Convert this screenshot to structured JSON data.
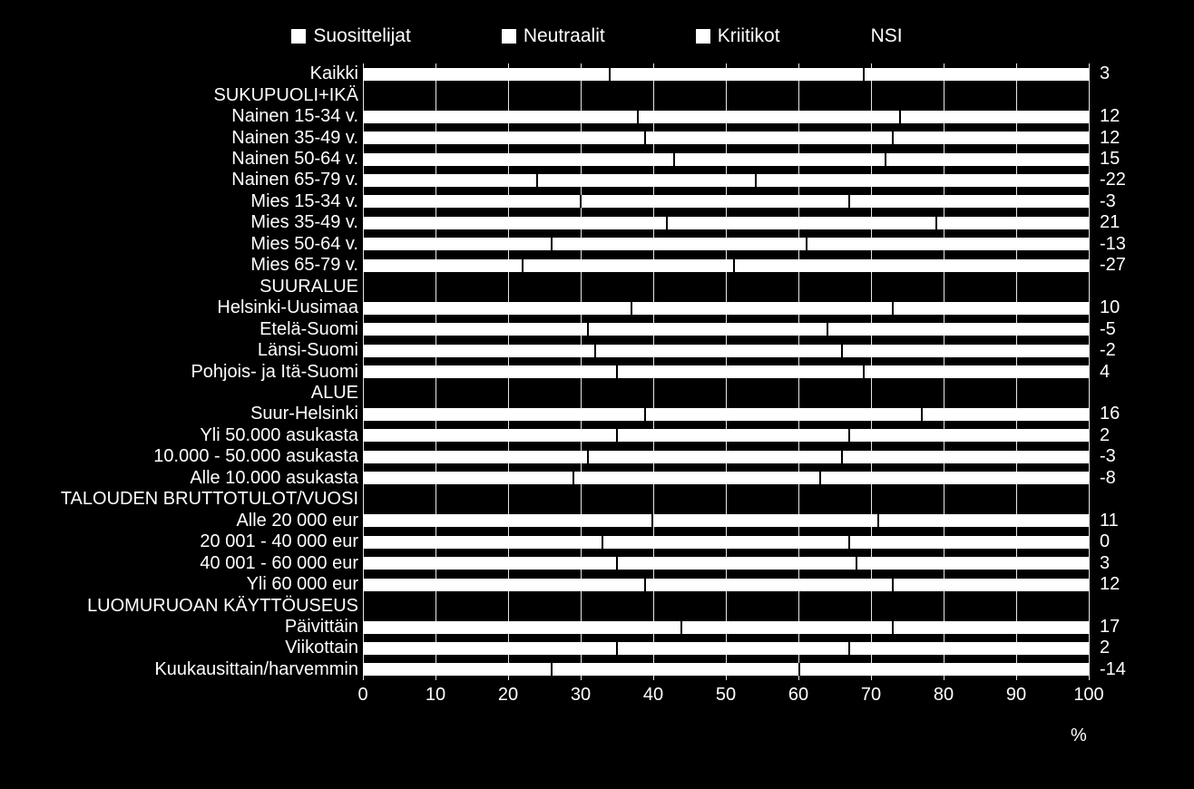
{
  "chart": {
    "type": "stacked-bar-horizontal",
    "background_color": "#000000",
    "text_color": "#ffffff",
    "label_fontsize": 20,
    "legend_fontsize": 21,
    "x_axis": {
      "min": 0,
      "max": 100,
      "tick_step": 10,
      "ticks": [
        0,
        10,
        20,
        30,
        40,
        50,
        60,
        70,
        80,
        90,
        100
      ],
      "unit_label": "%",
      "grid_color": "#ffffff"
    },
    "legend": [
      {
        "label": "Suosittelijat",
        "color": "#ffffff",
        "swatch_border": "#ffffff"
      },
      {
        "label": "Neutraalit",
        "color": "#ffffff",
        "swatch_border": "#ffffff"
      },
      {
        "label": "Kriitikot",
        "color": "#ffffff",
        "swatch_border": "#ffffff"
      }
    ],
    "nsi_header": "NSI",
    "series_colors": [
      "#ffffff",
      "#ffffff",
      "#ffffff"
    ],
    "segment_gap_color": "#000000",
    "rows": [
      {
        "label": "Kaikki",
        "values": [
          34,
          35,
          31
        ],
        "nsi": "3"
      },
      {
        "label": "SUKUPUOLI+IKÄ",
        "header": true
      },
      {
        "label": "Nainen 15-34 v.",
        "values": [
          38,
          36,
          26
        ],
        "nsi": "12"
      },
      {
        "label": "Nainen 35-49 v.",
        "values": [
          39,
          34,
          27
        ],
        "nsi": "12"
      },
      {
        "label": "Nainen 50-64 v.",
        "values": [
          43,
          29,
          28
        ],
        "nsi": "15"
      },
      {
        "label": "Nainen 65-79 v.",
        "values": [
          24,
          30,
          46
        ],
        "nsi": "-22"
      },
      {
        "label": "Mies 15-34 v.",
        "values": [
          30,
          37,
          33
        ],
        "nsi": "-3"
      },
      {
        "label": "Mies 35-49 v.",
        "values": [
          42,
          37,
          21
        ],
        "nsi": "21"
      },
      {
        "label": "Mies 50-64 v.",
        "values": [
          26,
          35,
          39
        ],
        "nsi": "-13"
      },
      {
        "label": "Mies 65-79 v.",
        "values": [
          22,
          29,
          49
        ],
        "nsi": "-27"
      },
      {
        "label": "SUURALUE",
        "header": true
      },
      {
        "label": "Helsinki-Uusimaa",
        "values": [
          37,
          36,
          27
        ],
        "nsi": "10"
      },
      {
        "label": "Etelä-Suomi",
        "values": [
          31,
          33,
          36
        ],
        "nsi": "-5"
      },
      {
        "label": "Länsi-Suomi",
        "values": [
          32,
          34,
          34
        ],
        "nsi": "-2"
      },
      {
        "label": "Pohjois- ja Itä-Suomi",
        "values": [
          35,
          34,
          31
        ],
        "nsi": "4"
      },
      {
        "label": "ALUE",
        "header": true
      },
      {
        "label": "Suur-Helsinki",
        "values": [
          39,
          38,
          23
        ],
        "nsi": "16"
      },
      {
        "label": "Yli 50.000 asukasta",
        "values": [
          35,
          32,
          33
        ],
        "nsi": "2"
      },
      {
        "label": "10.000 - 50.000 asukasta",
        "values": [
          31,
          35,
          34
        ],
        "nsi": "-3"
      },
      {
        "label": "Alle 10.000 asukasta",
        "values": [
          29,
          34,
          37
        ],
        "nsi": "-8"
      },
      {
        "label": "TALOUDEN BRUTTOTULOT/VUOSI",
        "header": true
      },
      {
        "label": "Alle 20 000 eur",
        "values": [
          40,
          31,
          29
        ],
        "nsi": "11"
      },
      {
        "label": "20 001 - 40 000 eur",
        "values": [
          33,
          34,
          33
        ],
        "nsi": "0"
      },
      {
        "label": "40 001 - 60 000 eur",
        "values": [
          35,
          33,
          32
        ],
        "nsi": "3"
      },
      {
        "label": "Yli 60 000 eur",
        "values": [
          39,
          34,
          27
        ],
        "nsi": "12"
      },
      {
        "label": "LUOMURUOAN KÄYTTÖUSEUS",
        "header": true
      },
      {
        "label": "Päivittäin",
        "values": [
          44,
          29,
          27
        ],
        "nsi": "17"
      },
      {
        "label": "Viikottain",
        "values": [
          35,
          32,
          33
        ],
        "nsi": "2"
      },
      {
        "label": "Kuukausittain/harvemmin",
        "values": [
          26,
          34,
          40
        ],
        "nsi": "-14"
      }
    ]
  }
}
